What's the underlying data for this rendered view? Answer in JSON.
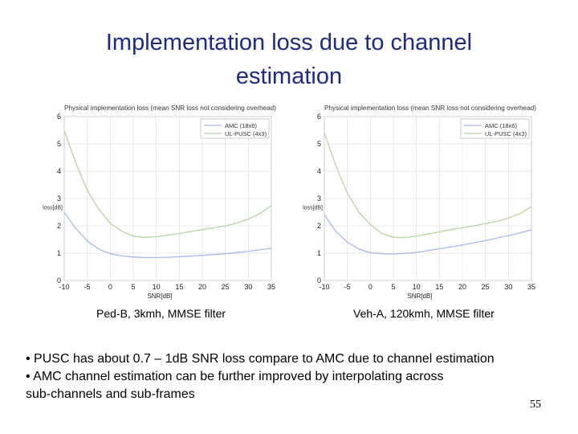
{
  "slide": {
    "title_line1": "Implementation loss due to channel",
    "title_line2": "estimation",
    "caption_left": "Ped-B, 3kmh, MMSE filter",
    "caption_right": "Veh-A, 120kmh, MMSE filter",
    "bullet1": "• PUSC has about 0.7 – 1dB SNR loss compare to AMC due to channel estimation",
    "bullet2_line1": "• AMC channel estimation can be further improved by interpolating across",
    "bullet2_line2": "sub-channels and sub-frames",
    "page_number": "55"
  },
  "chart_data": [
    {
      "type": "line",
      "title": "Physical implementation loss (mean SNR loss not considering overhead)",
      "xlabel": "SNR[dB]",
      "ylabel": "loss[dB]",
      "xlim": [
        -10,
        35
      ],
      "ylim": [
        0,
        6
      ],
      "xticks": [
        "-10",
        "-5",
        "0",
        "5",
        "10",
        "15",
        "20",
        "25",
        "30",
        "35"
      ],
      "yticks": [
        "0",
        "1",
        "2",
        "3",
        "4",
        "5",
        "6"
      ],
      "grid": true,
      "legend_position": "top-right",
      "x": [
        -10,
        -7.5,
        -5,
        -2.5,
        0,
        2.5,
        5,
        7.5,
        10,
        12.5,
        15,
        17.5,
        20,
        22.5,
        25,
        27.5,
        30,
        32.5,
        35
      ],
      "series": [
        {
          "name": "AMC (18x6)",
          "color": "#a8b8f0",
          "values": [
            2.5,
            1.9,
            1.45,
            1.15,
            0.98,
            0.9,
            0.86,
            0.84,
            0.84,
            0.85,
            0.87,
            0.89,
            0.92,
            0.95,
            0.98,
            1.02,
            1.07,
            1.12,
            1.18
          ]
        },
        {
          "name": "UL-PUSC (4x3)",
          "color": "#b8d4a0",
          "values": [
            5.5,
            4.3,
            3.3,
            2.6,
            2.1,
            1.8,
            1.62,
            1.58,
            1.6,
            1.66,
            1.72,
            1.79,
            1.86,
            1.93,
            2.0,
            2.1,
            2.25,
            2.45,
            2.75
          ]
        }
      ]
    },
    {
      "type": "line",
      "title": "Physical implementation loss (mean SNR loss not considering overhead)",
      "xlabel": "SNR[dB]",
      "ylabel": "loss[dB]",
      "xlim": [
        -10,
        35
      ],
      "ylim": [
        0,
        6
      ],
      "xticks": [
        "-10",
        "-5",
        "0",
        "5",
        "10",
        "15",
        "20",
        "25",
        "30",
        "35"
      ],
      "yticks": [
        "0",
        "1",
        "2",
        "3",
        "4",
        "5",
        "6"
      ],
      "grid": true,
      "legend_position": "top-right",
      "x": [
        -10,
        -7.5,
        -5,
        -2.5,
        0,
        2.5,
        5,
        7.5,
        10,
        12.5,
        15,
        17.5,
        20,
        22.5,
        25,
        27.5,
        30,
        32.5,
        35
      ],
      "series": [
        {
          "name": "AMC (18x6)",
          "color": "#a8b8f0",
          "values": [
            2.4,
            1.8,
            1.4,
            1.15,
            1.02,
            0.98,
            0.97,
            0.99,
            1.03,
            1.09,
            1.16,
            1.23,
            1.3,
            1.38,
            1.46,
            1.55,
            1.64,
            1.74,
            1.85
          ]
        },
        {
          "name": "UL-PUSC (4x3)",
          "color": "#b8d4a0",
          "values": [
            5.4,
            4.2,
            3.2,
            2.5,
            2.05,
            1.72,
            1.58,
            1.57,
            1.62,
            1.7,
            1.78,
            1.86,
            1.93,
            2.0,
            2.08,
            2.17,
            2.28,
            2.45,
            2.7
          ]
        }
      ]
    }
  ]
}
